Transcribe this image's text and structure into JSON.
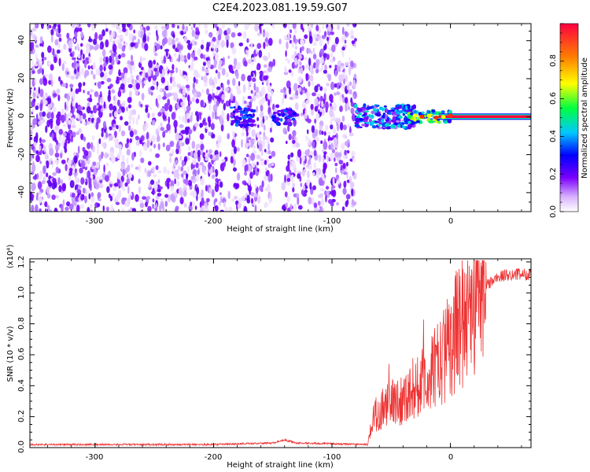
{
  "title": "C2E4.2023.081.19.59.G07",
  "chart_data": [
    {
      "type": "heatmap",
      "xlabel": "Height of straight line (km)",
      "ylabel": "Frequency (Hz)",
      "xlim": [
        -355,
        68
      ],
      "ylim": [
        -50,
        49
      ],
      "xticks": [
        -300,
        -200,
        -100,
        0
      ],
      "yticks": [
        -40,
        -20,
        0,
        20,
        40
      ],
      "grid": false,
      "colorbar": {
        "label": "Normalized spectral amplitude",
        "range": [
          0,
          1
        ],
        "ticks": [
          "0.0",
          "0.2",
          "0.4",
          "0.6",
          "0.8"
        ],
        "colormap": [
          "#ffffff",
          "#d8b0ff",
          "#7a00ff",
          "#0000ff",
          "#00c8ff",
          "#00ff40",
          "#ffff00",
          "#ff8000",
          "#ff0040"
        ]
      },
      "regions": [
        {
          "x": [
            -355,
            -80
          ],
          "y": [
            -50,
            49
          ],
          "value": 0.15
        },
        {
          "x": [
            -190,
            -120
          ],
          "y": [
            -5,
            5
          ],
          "value": 0.3
        },
        {
          "x": [
            -80,
            -30
          ],
          "y": [
            -5,
            5
          ],
          "value": 0.5
        },
        {
          "x": [
            -30,
            68
          ],
          "y": [
            -1,
            1
          ],
          "value": 0.85
        }
      ]
    },
    {
      "type": "line",
      "xlabel": "Height of straight line (km)",
      "ylabel": "SNR (10 * v/v)",
      "yscale_label": "(x10⁴)",
      "xlim": [
        -355,
        68
      ],
      "ylim": [
        0,
        1.22
      ],
      "xticks": [
        -300,
        -200,
        -100,
        0
      ],
      "yticks": [
        "0.0",
        "0.2",
        "0.4",
        "0.6",
        "0.8",
        "1.0",
        "1.2"
      ],
      "series_color": "#ee3333",
      "envelope": {
        "x": [
          -355,
          -200,
          -150,
          -140,
          -130,
          -70,
          -65,
          -60,
          -50,
          -40,
          -30,
          -20,
          -10,
          0,
          10,
          20,
          30,
          40,
          50,
          68
        ],
        "y": [
          0.02,
          0.02,
          0.03,
          0.05,
          0.03,
          0.02,
          0.2,
          0.25,
          0.3,
          0.32,
          0.4,
          0.45,
          0.55,
          0.7,
          0.85,
          0.98,
          1.05,
          1.1,
          1.12,
          1.12
        ]
      }
    }
  ]
}
